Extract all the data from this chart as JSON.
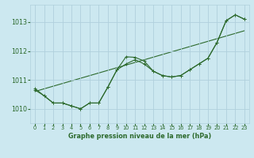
{
  "title": "Graphe pression niveau de la mer (hPa)",
  "bg_color": "#cce8f0",
  "grid_color": "#b0d0dc",
  "line_color": "#2d6a2d",
  "xlim": [
    -0.5,
    23.5
  ],
  "ylim": [
    1009.5,
    1013.6
  ],
  "yticks": [
    1010,
    1011,
    1012,
    1013
  ],
  "xticks": [
    0,
    1,
    2,
    3,
    4,
    5,
    6,
    7,
    8,
    9,
    10,
    11,
    12,
    13,
    14,
    15,
    16,
    17,
    18,
    19,
    20,
    21,
    22,
    23
  ],
  "series1": [
    1010.7,
    1010.45,
    1010.2,
    1010.2,
    1010.1,
    1010.0,
    1010.2,
    1010.2,
    1010.75,
    1011.35,
    1011.8,
    1011.78,
    1011.65,
    1011.3,
    1011.15,
    1011.1,
    1011.15,
    1011.35,
    1011.55,
    1011.75,
    1012.3,
    1013.05,
    1013.25,
    1013.1
  ],
  "series2": [
    1010.65,
    1010.45,
    1010.2,
    1010.2,
    1010.1,
    1010.0,
    1010.2,
    1010.2,
    1010.75,
    1011.35,
    1011.55,
    1011.7,
    1011.55,
    1011.3,
    1011.15,
    1011.1,
    1011.15,
    1011.35,
    1011.55,
    1011.75,
    1012.3,
    1013.05,
    1013.25,
    1013.1
  ],
  "series3_x": [
    0,
    23
  ],
  "series3_y": [
    1010.6,
    1012.7
  ]
}
